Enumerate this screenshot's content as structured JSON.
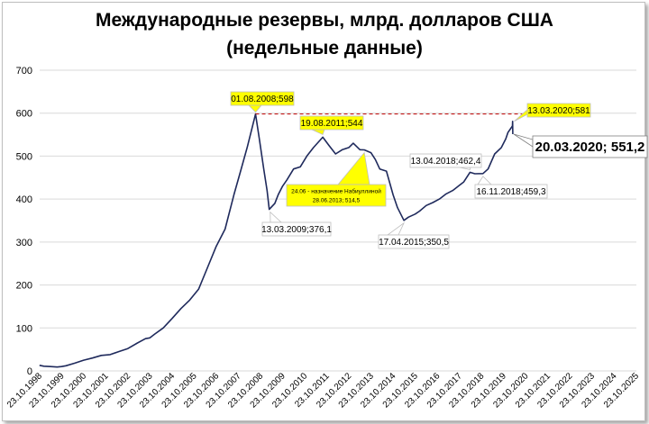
{
  "chart_data": {
    "type": "line",
    "title_line1": "Международные резервы, млрд. долларов США",
    "title_line2": "(недельные данные)",
    "xlabel": "",
    "ylabel": "",
    "ylim": [
      0,
      700
    ],
    "y_ticks": [
      0,
      100,
      200,
      300,
      400,
      500,
      600,
      700
    ],
    "x_tick_labels": [
      "23.10.1998",
      "23.10.1999",
      "23.10.2000",
      "23.10.2001",
      "23.10.2002",
      "23.10.2003",
      "23.10.2004",
      "23.10.2005",
      "23.10.2006",
      "23.10.2007",
      "23.10.2008",
      "23.10.2009",
      "23.10.2010",
      "23.10.2011",
      "23.10.2012",
      "23.10.2013",
      "23.10.2014",
      "23.10.2015",
      "23.10.2016",
      "23.10.2017",
      "23.10.2018",
      "23.10.2019",
      "23.10.2020",
      "23.10.2021",
      "23.10.2022",
      "23.10.2023",
      "23.10.2024",
      "23.10.2025"
    ],
    "series_color": "#1f2a5c",
    "series": [
      {
        "x": [
          1998.8,
          1999.0,
          1999.3,
          1999.6,
          1999.8,
          2000.0,
          2000.4,
          2000.8,
          2001.2,
          2001.6,
          2002.0,
          2002.4,
          2002.8,
          2003.2,
          2003.6,
          2003.8,
          2004.0,
          2004.4,
          2004.8,
          2005.2,
          2005.6,
          2006.0,
          2006.4,
          2006.8,
          2007.2,
          2007.6,
          2007.9,
          2008.2,
          2008.58,
          2008.75,
          2008.95,
          2009.1,
          2009.2,
          2009.45,
          2009.6,
          2009.8,
          2010.0,
          2010.3,
          2010.6,
          2010.9,
          2011.2,
          2011.62,
          2011.9,
          2012.2,
          2012.5,
          2012.8,
          2013.0,
          2013.3,
          2013.5,
          2013.8,
          2014.0,
          2014.2,
          2014.5,
          2014.8,
          2015.0,
          2015.29,
          2015.5,
          2015.8,
          2016.0,
          2016.3,
          2016.6,
          2016.9,
          2017.2,
          2017.5,
          2017.8,
          2018.0,
          2018.28,
          2018.5,
          2018.87,
          2019.1,
          2019.4,
          2019.7,
          2019.9,
          2020.0,
          2020.2,
          2020.21,
          2020.22
        ],
        "y": [
          13,
          11,
          10,
          9,
          10,
          12,
          18,
          25,
          30,
          36,
          38,
          45,
          52,
          64,
          75,
          77,
          85,
          100,
          122,
          145,
          165,
          190,
          240,
          290,
          330,
          410,
          465,
          520,
          598,
          540,
          470,
          420,
          376,
          390,
          410,
          430,
          445,
          470,
          475,
          500,
          520,
          544,
          525,
          505,
          515,
          520,
          530,
          515,
          514.5,
          508,
          492,
          470,
          465,
          410,
          380,
          350.5,
          358,
          365,
          372,
          385,
          392,
          400,
          412,
          420,
          432,
          440,
          462.4,
          459,
          459.3,
          470,
          505,
          520,
          540,
          555,
          570,
          581,
          551.2
        ]
      }
    ],
    "annotations": {
      "peak_2008": "01.08.2008;598",
      "trough_2009": "13.03.2009;376,1",
      "peak_2011": "19.08.2011;544",
      "nabiullina_line1": "24.06 - назначение Набиуллиной",
      "nabiullina_line2": "28.06.2013;  514,5",
      "trough_2015": "17.04.2015;350,5",
      "apr_2018": "13.04.2018;462,4",
      "nov_2018": "16.11.2018;459,3",
      "mar13_2020": "13.03.2020;581",
      "mar20_2020": "20.03.2020; 551,2"
    },
    "colors": {
      "callout_yellow": "#ffff00",
      "dashed_red": "#c00000",
      "gridline": "#d9d9d9"
    }
  }
}
